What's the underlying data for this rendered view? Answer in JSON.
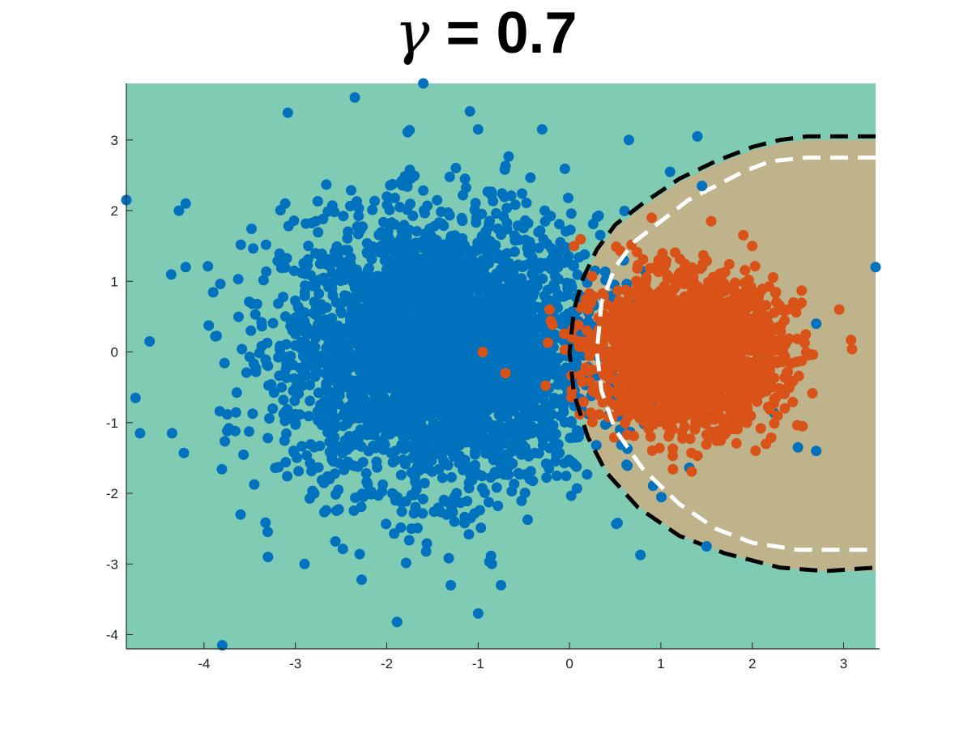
{
  "title": {
    "symbol": "γ",
    "rest": " = 0.7"
  },
  "chart_data": {
    "type": "scatter",
    "title": "γ = 0.7",
    "xlabel": "",
    "ylabel": "",
    "xlim": [
      -4.85,
      3.35
    ],
    "ylim": [
      -4.2,
      3.8
    ],
    "xticks": [
      -4,
      -3,
      -2,
      -1,
      0,
      1,
      2,
      3
    ],
    "yticks": [
      -4,
      -3,
      -2,
      -1,
      0,
      1,
      2,
      3
    ],
    "grid": false,
    "legend": "none",
    "colors": {
      "background_region": "#7fcbb3",
      "decision_region": "#beb38a",
      "class_blue": "#0072bd",
      "class_orange": "#d95319",
      "boundary_black": "#000000",
      "boundary_white": "#ffffff"
    },
    "series": [
      {
        "color": "#0072bd",
        "cluster": {
          "center": [
            -1.4,
            0.0
          ],
          "std": [
            0.85,
            0.95
          ],
          "n": 3500
        },
        "outliers": [
          [
            -1.6,
            3.8
          ],
          [
            -2.35,
            3.6
          ],
          [
            -4.85,
            2.15
          ],
          [
            -4.75,
            -0.65
          ],
          [
            -4.7,
            -1.15
          ],
          [
            -3.8,
            -4.15
          ],
          [
            -1.0,
            -3.7
          ],
          [
            3.35,
            1.2
          ],
          [
            2.7,
            0.4
          ],
          [
            2.7,
            -1.4
          ],
          [
            2.5,
            -1.35
          ],
          [
            1.4,
            3.05
          ],
          [
            0.65,
            3.0
          ],
          [
            1.1,
            2.55
          ],
          [
            1.45,
            2.35
          ],
          [
            -0.3,
            3.15
          ],
          [
            -1.0,
            3.15
          ],
          [
            -4.2,
            2.1
          ],
          [
            -4.2,
            1.2
          ],
          [
            -4.35,
            -1.15
          ],
          [
            -2.9,
            -3.0
          ],
          [
            -3.3,
            -2.9
          ],
          [
            -3.6,
            -2.3
          ],
          [
            -1.3,
            -3.3
          ],
          [
            -0.75,
            -3.3
          ],
          [
            1.5,
            -2.75
          ],
          [
            -0.85,
            -3.0
          ]
        ]
      },
      {
        "color": "#d95319",
        "cluster": {
          "center": [
            1.3,
            0.0
          ],
          "std": [
            0.5,
            0.5
          ],
          "n": 2200
        },
        "outliers": [
          [
            -0.95,
            0.0
          ],
          [
            -0.7,
            -0.3
          ],
          [
            1.55,
            1.85
          ],
          [
            2.0,
            1.5
          ],
          [
            0.9,
            1.9
          ],
          [
            2.45,
            0.7
          ],
          [
            2.55,
            -1.05
          ],
          [
            2.15,
            -1.3
          ],
          [
            0.05,
            1.5
          ]
        ]
      }
    ],
    "decision_boundaries": [
      {
        "style": "dashed",
        "color": "#000000",
        "path": [
          [
            3.35,
            3.05
          ],
          [
            2.6,
            3.05
          ],
          [
            2.3,
            3.0
          ],
          [
            2.0,
            2.9
          ],
          [
            1.6,
            2.7
          ],
          [
            1.2,
            2.45
          ],
          [
            0.8,
            2.1
          ],
          [
            0.5,
            1.8
          ],
          [
            0.3,
            1.45
          ],
          [
            0.15,
            1.05
          ],
          [
            0.05,
            0.6
          ],
          [
            0.0,
            0.0
          ],
          [
            0.05,
            -0.6
          ],
          [
            0.2,
            -1.2
          ],
          [
            0.4,
            -1.7
          ],
          [
            0.75,
            -2.2
          ],
          [
            1.2,
            -2.6
          ],
          [
            1.7,
            -2.85
          ],
          [
            2.3,
            -3.05
          ],
          [
            2.8,
            -3.1
          ],
          [
            3.35,
            -3.05
          ]
        ]
      },
      {
        "style": "dashed",
        "color": "#ffffff",
        "path": [
          [
            3.35,
            2.75
          ],
          [
            2.6,
            2.75
          ],
          [
            2.2,
            2.7
          ],
          [
            1.9,
            2.55
          ],
          [
            1.6,
            2.35
          ],
          [
            1.3,
            2.15
          ],
          [
            1.0,
            1.85
          ],
          [
            0.7,
            1.55
          ],
          [
            0.5,
            1.2
          ],
          [
            0.35,
            0.7
          ],
          [
            0.3,
            0.0
          ],
          [
            0.35,
            -0.55
          ],
          [
            0.5,
            -1.1
          ],
          [
            0.8,
            -1.65
          ],
          [
            1.2,
            -2.15
          ],
          [
            1.6,
            -2.5
          ],
          [
            2.0,
            -2.7
          ],
          [
            2.5,
            -2.8
          ],
          [
            3.35,
            -2.8
          ]
        ]
      }
    ],
    "shaded_region_outline": [
      [
        3.35,
        3.0
      ],
      [
        2.6,
        3.0
      ],
      [
        2.3,
        2.95
      ],
      [
        2.0,
        2.85
      ],
      [
        1.6,
        2.65
      ],
      [
        1.2,
        2.4
      ],
      [
        0.8,
        2.05
      ],
      [
        0.5,
        1.75
      ],
      [
        0.3,
        1.4
      ],
      [
        0.15,
        1.0
      ],
      [
        0.05,
        0.55
      ],
      [
        0.02,
        0.0
      ],
      [
        0.07,
        -0.6
      ],
      [
        0.22,
        -1.2
      ],
      [
        0.42,
        -1.7
      ],
      [
        0.77,
        -2.2
      ],
      [
        1.22,
        -2.6
      ],
      [
        1.72,
        -2.85
      ],
      [
        2.32,
        -3.05
      ],
      [
        2.8,
        -3.1
      ],
      [
        3.35,
        -3.1
      ]
    ]
  }
}
